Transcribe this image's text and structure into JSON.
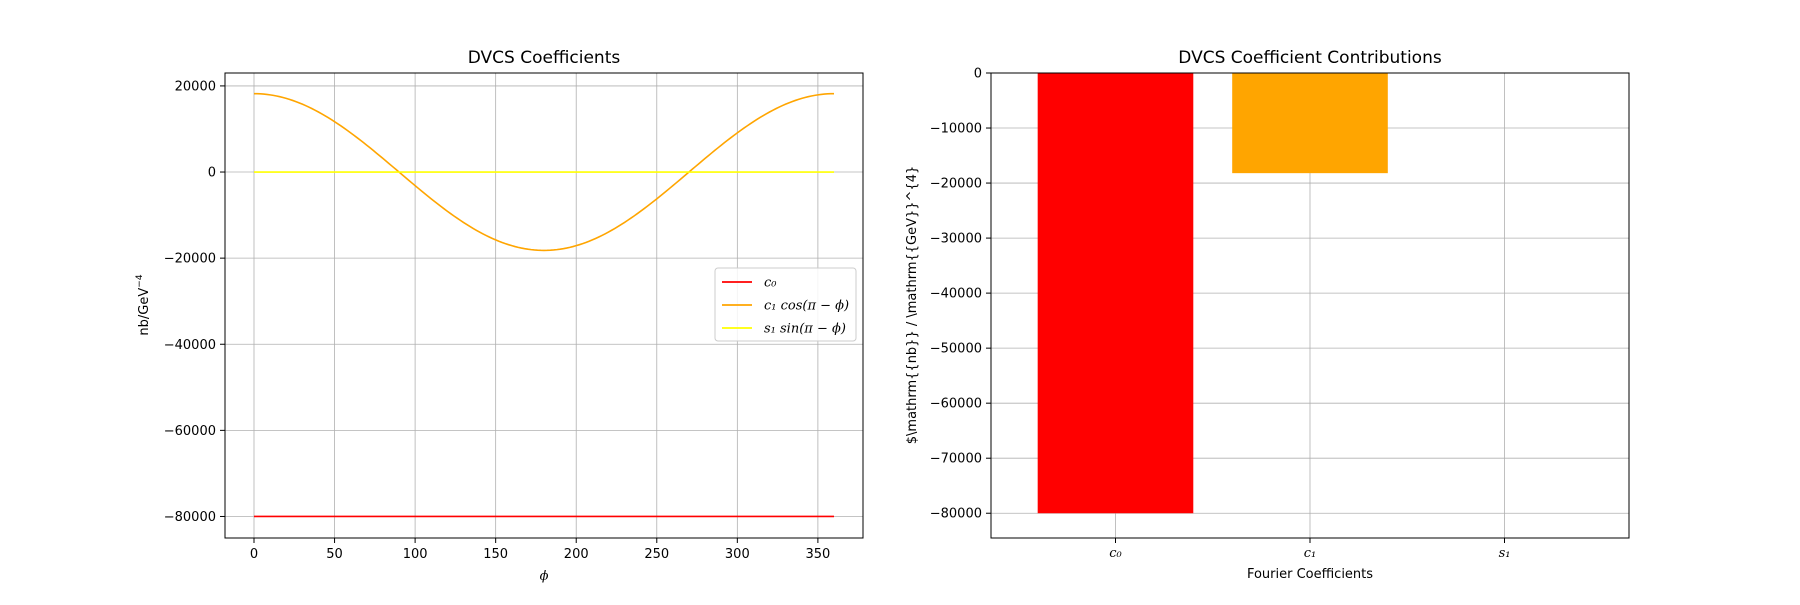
{
  "chart_data": [
    {
      "type": "line",
      "title": "DVCS Coefficients",
      "xlabel": "ϕ",
      "ylabel": "nb/GeV",
      "ylabel_exponent": "−4",
      "xlim": [
        -18,
        378
      ],
      "ylim": [
        -85000,
        23000
      ],
      "xticks": [
        0,
        50,
        100,
        150,
        200,
        250,
        300,
        350
      ],
      "yticks": [
        20000,
        0,
        -20000,
        -40000,
        -60000,
        -80000
      ],
      "ytick_labels": [
        "20000",
        "0",
        "−20000",
        "−40000",
        "−60000",
        "−80000"
      ],
      "grid": true,
      "legend_position": "center-right",
      "series": [
        {
          "name": "c₀",
          "color": "#ff0000",
          "kind": "constant",
          "value": -80000,
          "x_range": [
            0,
            360
          ]
        },
        {
          "name": "c₁ cos(π − ϕ)",
          "color": "#ffa500",
          "kind": "cosine",
          "amplitude": 18200,
          "x_range": [
            0,
            360
          ]
        },
        {
          "name": "s₁ sin(π − ϕ)",
          "color": "#ffff00",
          "kind": "constant",
          "value": 0,
          "x_range": [
            0,
            360
          ]
        }
      ]
    },
    {
      "type": "bar",
      "title": "DVCS Coefficient Contributions",
      "xlabel": "Fourier Coefficients",
      "ylabel": "$\\mathrm{{nb}} / \\mathrm{{GeV}}^{4}",
      "categories": [
        "c₀",
        "c₁",
        "s₁"
      ],
      "values": [
        -80000,
        -18200,
        0
      ],
      "colors": [
        "#ff0000",
        "#ffa500",
        "#ffff00"
      ],
      "ylim": [
        -84500,
        0
      ],
      "yticks": [
        0,
        -10000,
        -20000,
        -30000,
        -40000,
        -50000,
        -60000,
        -70000,
        -80000
      ],
      "ytick_labels": [
        "0",
        "−10000",
        "−20000",
        "−30000",
        "−40000",
        "−50000",
        "−60000",
        "−70000",
        "−80000"
      ],
      "grid": true
    }
  ]
}
